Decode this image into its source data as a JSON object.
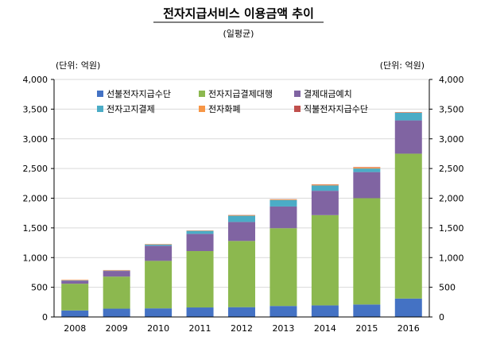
{
  "chart_data": {
    "type": "bar",
    "stacked": true,
    "title": "전자지급서비스 이용금액 추이",
    "subtitle": "(일평균)",
    "unit_left": "(단위: 억원)",
    "unit_right": "(단위: 억원)",
    "categories": [
      "2008",
      "2009",
      "2010",
      "2011",
      "2012",
      "2013",
      "2014",
      "2015",
      "2016"
    ],
    "ylim": [
      0,
      4000
    ],
    "yticks": [
      0,
      500,
      1000,
      1500,
      2000,
      2500,
      3000,
      3500,
      4000
    ],
    "ytick_labels": [
      "0",
      "500",
      "1,000",
      "1,500",
      "2,000",
      "2,500",
      "3,000",
      "3,500",
      "4,000"
    ],
    "series": [
      {
        "name": "선불전자지급수단",
        "color": "#4472c4",
        "values": [
          110,
          140,
          145,
          160,
          165,
          185,
          195,
          210,
          310
        ]
      },
      {
        "name": "전자지급결제대행",
        "color": "#8cb84f",
        "values": [
          450,
          540,
          800,
          950,
          1115,
          1310,
          1520,
          1790,
          2440
        ]
      },
      {
        "name": "결제대금예치",
        "color": "#8064a2",
        "values": [
          50,
          95,
          255,
          290,
          320,
          365,
          410,
          440,
          560
        ]
      },
      {
        "name": "전자고지결제",
        "color": "#4bacc6",
        "values": [
          5,
          5,
          20,
          50,
          105,
          110,
          90,
          60,
          130
        ]
      },
      {
        "name": "전자화폐",
        "color": "#f79646",
        "values": [
          8,
          8,
          7,
          6,
          10,
          10,
          15,
          20,
          5
        ]
      },
      {
        "name": "직불전자지급수단",
        "color": "#c0504d",
        "values": [
          2,
          2,
          2,
          2,
          3,
          3,
          4,
          5,
          5
        ]
      }
    ],
    "legend_position": "top-left"
  }
}
